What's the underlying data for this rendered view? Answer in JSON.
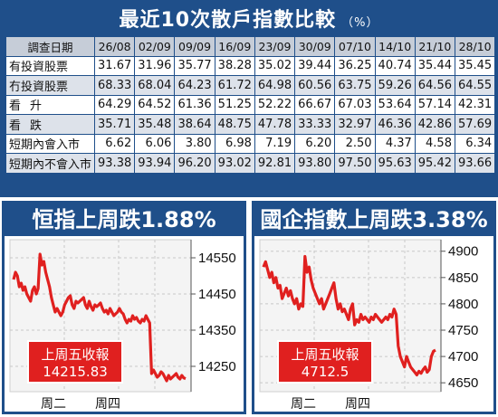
{
  "table": {
    "title": "最近10次散戶指數比較",
    "unit": "（%）",
    "header_label": "調查日期",
    "dates": [
      "26/08",
      "02/09",
      "09/09",
      "16/09",
      "23/09",
      "30/09",
      "07/10",
      "14/10",
      "21/10",
      "28/10"
    ],
    "rows": [
      {
        "label": "有投資股票",
        "values": [
          "31.67",
          "31.96",
          "35.77",
          "38.28",
          "35.02",
          "39.44",
          "36.25",
          "40.74",
          "35.44",
          "35.45"
        ]
      },
      {
        "label": "冇投資股票",
        "values": [
          "68.33",
          "68.04",
          "64.23",
          "61.72",
          "64.98",
          "60.56",
          "63.75",
          "59.26",
          "64.56",
          "64.55"
        ]
      },
      {
        "label": "看升",
        "values": [
          "64.29",
          "64.52",
          "61.36",
          "51.25",
          "52.22",
          "66.67",
          "67.03",
          "53.64",
          "57.14",
          "42.31"
        ]
      },
      {
        "label": "看跌",
        "values": [
          "35.71",
          "35.48",
          "38.64",
          "48.75",
          "47.78",
          "33.33",
          "32.97",
          "46.36",
          "42.86",
          "57.69"
        ]
      },
      {
        "label": "短期內會入市",
        "values": [
          "6.62",
          "6.06",
          "3.80",
          "6.98",
          "7.19",
          "6.20",
          "2.50",
          "4.37",
          "4.58",
          "6.34"
        ]
      },
      {
        "label": "短期內不會入市",
        "values": [
          "93.38",
          "93.94",
          "96.20",
          "93.02",
          "92.81",
          "93.80",
          "97.50",
          "95.63",
          "95.42",
          "93.66"
        ]
      }
    ]
  },
  "chart_data": [
    {
      "type": "line",
      "title": "恒指上周跌1.88%",
      "y_ticks": [
        "14550",
        "14450",
        "14350",
        "14250"
      ],
      "ylim": [
        14190,
        14590
      ],
      "x_labels": [
        "周二",
        "周四"
      ],
      "close_label": "上周五收報",
      "close_value": "14215.83",
      "line_color": "#e0201f",
      "series": [
        {
          "values": [
            14490,
            14510,
            14500,
            14470,
            14480,
            14460,
            14470,
            14450,
            14440,
            14430,
            14460,
            14470,
            14450,
            14465,
            14560,
            14530,
            14540,
            14510,
            14490,
            14470,
            14440,
            14420,
            14400,
            14410,
            14400,
            14390,
            14400,
            14420,
            14430,
            14440,
            14445,
            14420,
            14410,
            14430,
            14425,
            14430,
            14435,
            14440,
            14420,
            14410,
            14430,
            14415,
            14405,
            14420,
            14415,
            14420,
            14425,
            14410,
            14400,
            14405,
            14395,
            14410,
            14400,
            14390,
            14395,
            14400,
            14410,
            14400,
            14395,
            14380,
            14370,
            14380,
            14375,
            14390,
            14380,
            14385,
            14375,
            14370,
            14380,
            14375,
            14390,
            14380,
            14370,
            14230,
            14240,
            14230,
            14220,
            14225,
            14235,
            14230,
            14220,
            14210,
            14225,
            14215,
            14220,
            14225,
            14230,
            14220,
            14215,
            14225,
            14218,
            14216
          ]
        }
      ]
    },
    {
      "type": "line",
      "title": "國企指數上周跌3.38%",
      "y_ticks": [
        "4900",
        "4850",
        "4800",
        "4750",
        "4700",
        "4650"
      ],
      "ylim": [
        4640,
        4915
      ],
      "x_labels": [
        "周二",
        "周四"
      ],
      "close_label": "上周五收報",
      "close_value": "4712.5",
      "line_color": "#e0201f",
      "series": [
        {
          "values": [
            4870,
            4880,
            4865,
            4850,
            4860,
            4840,
            4850,
            4830,
            4835,
            4810,
            4820,
            4830,
            4815,
            4825,
            4810,
            4800,
            4810,
            4790,
            4800,
            4795,
            4890,
            4860,
            4870,
            4845,
            4830,
            4820,
            4810,
            4800,
            4810,
            4790,
            4800,
            4810,
            4820,
            4830,
            4840,
            4810,
            4790,
            4800,
            4785,
            4790,
            4780,
            4770,
            4790,
            4800,
            4760,
            4770,
            4765,
            4780,
            4770,
            4775,
            4770,
            4765,
            4775,
            4770,
            4780,
            4775,
            4770,
            4765,
            4770,
            4775,
            4770,
            4780,
            4775,
            4790,
            4780,
            4720,
            4700,
            4690,
            4680,
            4700,
            4690,
            4680,
            4675,
            4670,
            4665,
            4672,
            4668,
            4675,
            4680,
            4670,
            4675,
            4700,
            4710,
            4712
          ]
        }
      ]
    }
  ]
}
